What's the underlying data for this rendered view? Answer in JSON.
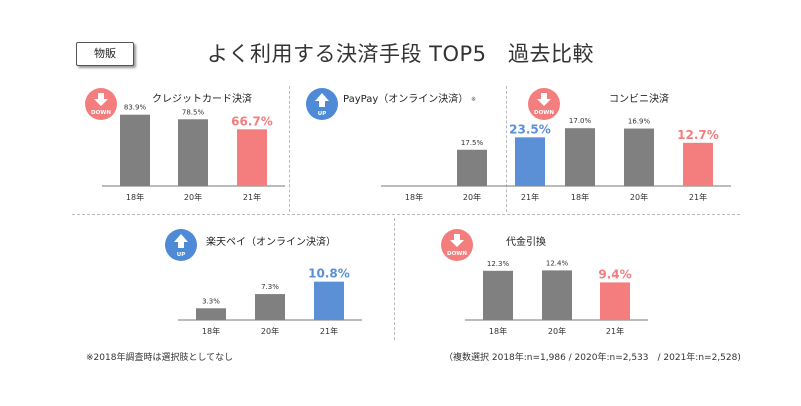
{
  "tag": "物販",
  "title": "よく利用する決済手段 TOP5　過去比較",
  "colors": {
    "gray": "#808080",
    "red": "#f47e7e",
    "blue": "#5b8fd6",
    "up": "#4f8ad6",
    "down": "#f47e7e"
  },
  "chart_data": [
    {
      "type": "bar",
      "title": "クレジットカード決済",
      "trend": "DOWN",
      "icon": "down-arrow-icon",
      "categories": [
        "18年",
        "20年",
        "21年"
      ],
      "values": [
        83.9,
        78.5,
        66.7
      ],
      "labels": [
        "83.9%",
        "78.5%",
        "66.7%"
      ],
      "highlight_color": "red"
    },
    {
      "type": "bar",
      "title": "PayPay（オンライン決済）",
      "title_mark": "※",
      "trend": "UP",
      "icon": "up-arrow-icon",
      "categories": [
        "18年",
        "20年",
        "21年"
      ],
      "values": [
        null,
        17.5,
        23.5
      ],
      "labels": [
        "",
        "17.5%",
        "23.5%"
      ],
      "highlight_color": "blue"
    },
    {
      "type": "bar",
      "title": "コンビニ決済",
      "trend": "DOWN",
      "icon": "down-arrow-icon",
      "categories": [
        "18年",
        "20年",
        "21年"
      ],
      "values": [
        17.0,
        16.9,
        12.7
      ],
      "labels": [
        "17.0%",
        "16.9%",
        "12.7%"
      ],
      "highlight_color": "red"
    },
    {
      "type": "bar",
      "title": "楽天ペイ（オンライン決済）",
      "trend": "UP",
      "icon": "up-arrow-icon",
      "categories": [
        "18年",
        "20年",
        "21年"
      ],
      "values": [
        3.3,
        7.3,
        10.8
      ],
      "labels": [
        "3.3%",
        "7.3%",
        "10.8%"
      ],
      "highlight_color": "blue"
    },
    {
      "type": "bar",
      "title": "代金引換",
      "trend": "DOWN",
      "icon": "down-arrow-icon",
      "categories": [
        "18年",
        "20年",
        "21年"
      ],
      "values": [
        12.3,
        12.4,
        9.4
      ],
      "labels": [
        "12.3%",
        "12.4%",
        "9.4%"
      ],
      "highlight_color": "red"
    }
  ],
  "footnote_left": "※2018年調査時は選択肢としてなし",
  "footnote_right": "（複数選択 2018年:n=1,986 / 2020年:n=2,533　/ 2021年:n=2,528)"
}
